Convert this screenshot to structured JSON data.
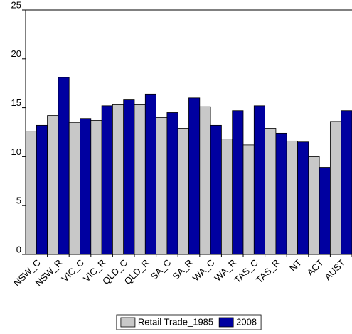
{
  "chart_data": {
    "type": "bar",
    "categories": [
      "NSW_C",
      "NSW_R",
      "VIC_C",
      "VIC_R",
      "QLD_C",
      "QLD_R",
      "SA_C",
      "SA_R",
      "WA_C",
      "WA_R",
      "TAS_C",
      "TAS_R",
      "NT",
      "ACT",
      "AUST"
    ],
    "series": [
      {
        "name": "Retail Trade_1985",
        "color": "#c8c8c8",
        "values": [
          12.6,
          14.2,
          13.5,
          13.7,
          15.3,
          15.3,
          14.0,
          12.9,
          15.1,
          11.8,
          11.2,
          12.9,
          11.6,
          10.0,
          13.6
        ]
      },
      {
        "name": "2008",
        "color": "#0000a0",
        "values": [
          13.2,
          18.1,
          13.9,
          15.2,
          15.8,
          16.4,
          14.5,
          16.0,
          13.2,
          14.7,
          15.2,
          12.4,
          11.5,
          8.9,
          14.7
        ]
      }
    ],
    "ylim": [
      0,
      25
    ],
    "yticks": [
      0,
      5,
      10,
      15,
      20,
      25
    ],
    "legend": "bottom"
  }
}
